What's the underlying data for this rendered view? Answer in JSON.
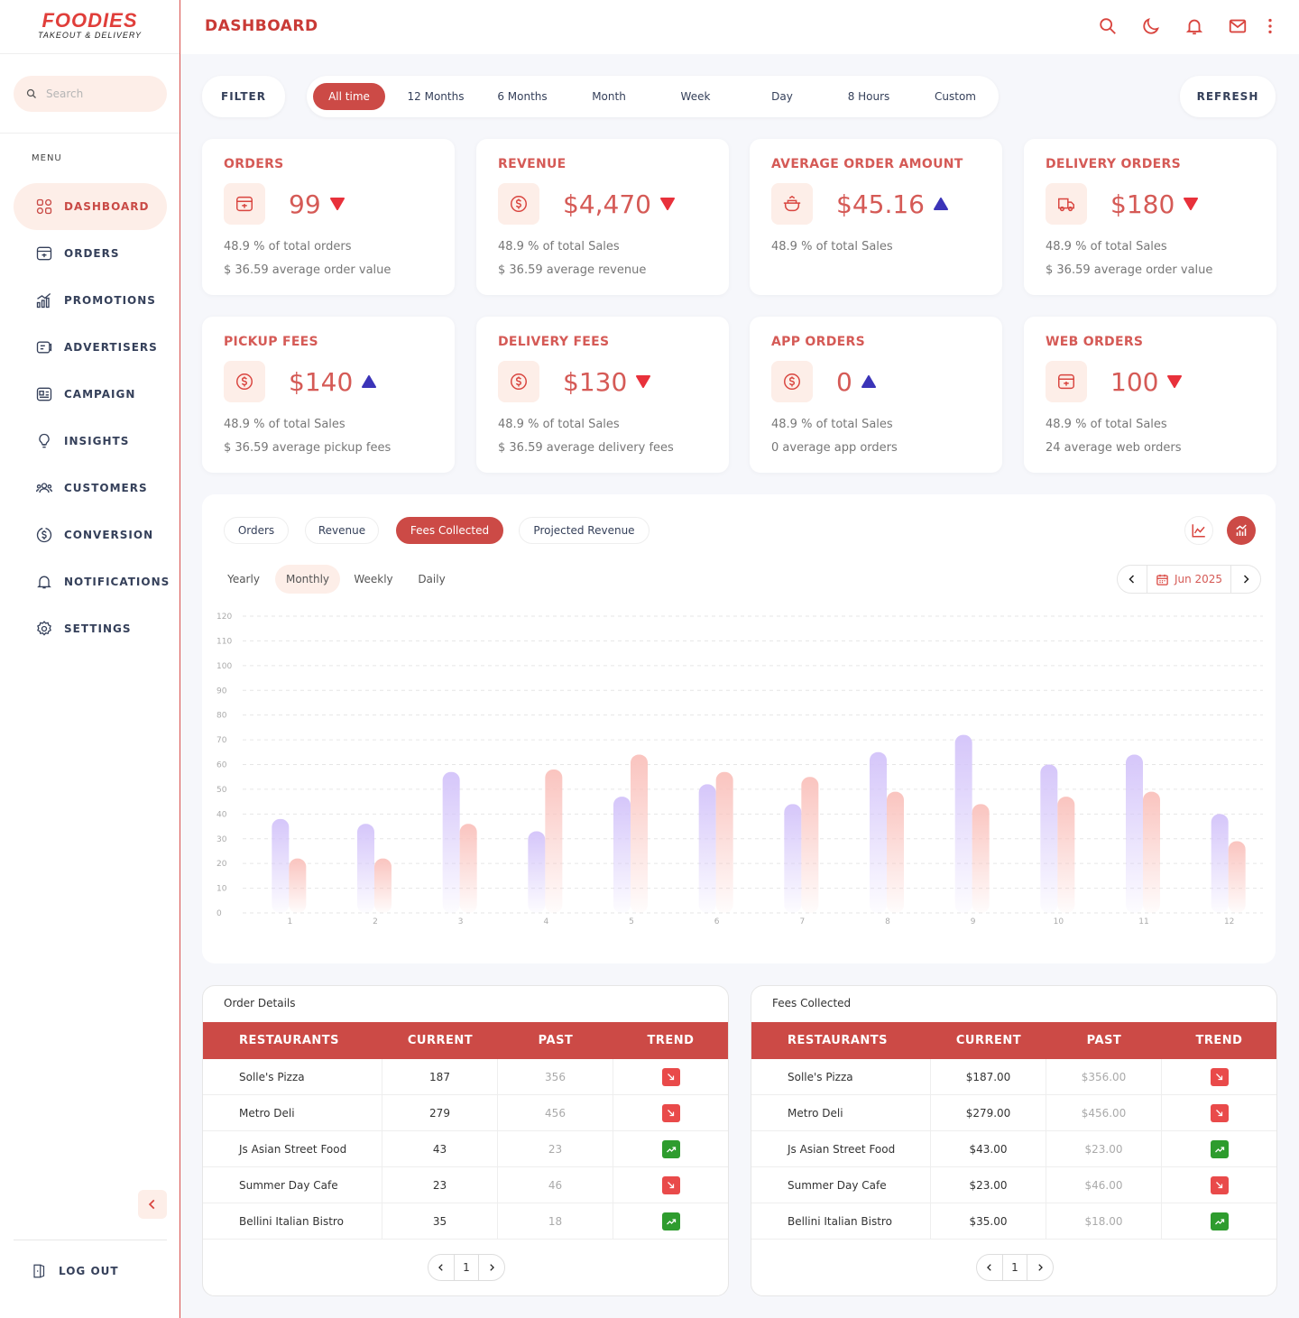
{
  "brand": {
    "name": "FOODIES",
    "tagline": "TAKEOUT & DELIVERY"
  },
  "search": {
    "placeholder": "Search"
  },
  "menu_label": "MENU",
  "sidebar": {
    "items": [
      {
        "label": "DASHBOARD",
        "icon": "dashboard-icon",
        "active": true
      },
      {
        "label": "ORDERS",
        "icon": "orders-icon"
      },
      {
        "label": "PROMOTIONS",
        "icon": "promotions-icon"
      },
      {
        "label": "ADVERTISERS",
        "icon": "advertisers-icon"
      },
      {
        "label": "CAMPAIGN",
        "icon": "campaign-icon"
      },
      {
        "label": "INSIGHTS",
        "icon": "lightbulb-icon"
      },
      {
        "label": "CUSTOMERS",
        "icon": "customers-icon"
      },
      {
        "label": "CONVERSION",
        "icon": "dollar-icon"
      },
      {
        "label": "NOTIFICATIONS",
        "icon": "bell-icon"
      },
      {
        "label": "SETTINGS",
        "icon": "gear-icon"
      }
    ],
    "logout": "LOG OUT"
  },
  "header": {
    "title": "DASHBOARD",
    "icons": [
      "search-icon",
      "moon-icon",
      "bell-icon",
      "mail-icon",
      "more-icon"
    ]
  },
  "filter": {
    "label": "FILTER",
    "refresh": "REFRESH",
    "ranges": [
      "All time",
      "12 Months",
      "6 Months",
      "Month",
      "Week",
      "Day",
      "8 Hours",
      "Custom"
    ],
    "active": "All time"
  },
  "colors": {
    "accent": "#cc4a46",
    "up": "#3b34b8",
    "down": "#e8313b",
    "series1": "#d9cbfa",
    "series2": "#fbc9c4"
  },
  "stats": [
    {
      "title": "ORDERS",
      "value": "99",
      "trend": "down",
      "icon": "order-box-icon",
      "line1": "48.9 % of total orders",
      "line2": "$ 36.59 average order value"
    },
    {
      "title": "REVENUE",
      "value": "$4,470",
      "trend": "down",
      "icon": "dollar-circle-icon",
      "line1": "48.9 % of total Sales",
      "line2": "$ 36.59 average revenue"
    },
    {
      "title": "AVERAGE ORDER AMOUNT",
      "value": "$45.16",
      "trend": "up",
      "icon": "food-pot-icon",
      "line1": "48.9 % of total Sales",
      "line2": ""
    },
    {
      "title": "DELIVERY ORDERS",
      "value": "$180",
      "trend": "down",
      "icon": "truck-icon",
      "line1": "48.9 % of total Sales",
      "line2": "$ 36.59 average order value"
    },
    {
      "title": "PICKUP FEES",
      "value": "$140",
      "trend": "up",
      "icon": "dollar-circle-icon",
      "line1": "48.9 % of total Sales",
      "line2": "$ 36.59 average pickup fees"
    },
    {
      "title": "DELIVERY FEES",
      "value": "$130",
      "trend": "down",
      "icon": "dollar-circle-icon",
      "line1": "48.9 % of total Sales",
      "line2": "$ 36.59 average delivery fees"
    },
    {
      "title": "APP ORDERS",
      "value": "0",
      "trend": "up",
      "icon": "dollar-circle-icon",
      "line1": "48.9 % of total Sales",
      "line2": "0 average app orders"
    },
    {
      "title": "WEB ORDERS",
      "value": "100",
      "trend": "down",
      "icon": "order-box-icon",
      "line1": "48.9 % of total Sales",
      "line2": "24 average web orders"
    }
  ],
  "chart_panel": {
    "tabs": [
      "Orders",
      "Revenue",
      "Fees Collected",
      "Projected Revenue"
    ],
    "active_tab": "Fees Collected",
    "periods": [
      "Yearly",
      "Monthly",
      "Weekly",
      "Daily"
    ],
    "active_period": "Monthly",
    "date": "Jun 2025"
  },
  "chart_data": {
    "type": "bar",
    "categories": [
      "1",
      "2",
      "3",
      "4",
      "5",
      "6",
      "7",
      "8",
      "9",
      "10",
      "11",
      "12"
    ],
    "series": [
      {
        "values": [
          38,
          36,
          57,
          33,
          47,
          52,
          44,
          65,
          72,
          60,
          64,
          40
        ]
      },
      {
        "values": [
          22,
          22,
          36,
          58,
          64,
          57,
          55,
          49,
          44,
          47,
          49,
          29
        ]
      }
    ],
    "yticks": [
      0,
      10,
      20,
      30,
      40,
      50,
      60,
      70,
      80,
      90,
      100,
      110,
      120
    ],
    "ylim": [
      0,
      120
    ],
    "grid": true
  },
  "order_table": {
    "title": "Order Details",
    "columns": [
      "RESTAURANTS",
      "CURRENT",
      "PAST",
      "TREND"
    ],
    "rows": [
      {
        "name": "Solle's Pizza",
        "current": "187",
        "past": "356",
        "trend": "down"
      },
      {
        "name": "Metro Deli",
        "current": "279",
        "past": "456",
        "trend": "down"
      },
      {
        "name": "Js Asian Street Food",
        "current": "43",
        "past": "23",
        "trend": "up"
      },
      {
        "name": "Summer Day Cafe",
        "current": "23",
        "past": "46",
        "trend": "down"
      },
      {
        "name": "Bellini Italian Bistro",
        "current": "35",
        "past": "18",
        "trend": "up"
      }
    ],
    "page": "1"
  },
  "fees_table": {
    "title": "Fees Collected",
    "columns": [
      "RESTAURANTS",
      "CURRENT",
      "PAST",
      "TREND"
    ],
    "rows": [
      {
        "name": "Solle's Pizza",
        "current": "$187.00",
        "past": "$356.00",
        "trend": "down"
      },
      {
        "name": "Metro Deli",
        "current": "$279.00",
        "past": "$456.00",
        "trend": "down"
      },
      {
        "name": "Js Asian Street Food",
        "current": "$43.00",
        "past": "$23.00",
        "trend": "up"
      },
      {
        "name": "Summer Day Cafe",
        "current": "$23.00",
        "past": "$46.00",
        "trend": "down"
      },
      {
        "name": "Bellini Italian Bistro",
        "current": "$35.00",
        "past": "$18.00",
        "trend": "up"
      }
    ],
    "page": "1"
  }
}
